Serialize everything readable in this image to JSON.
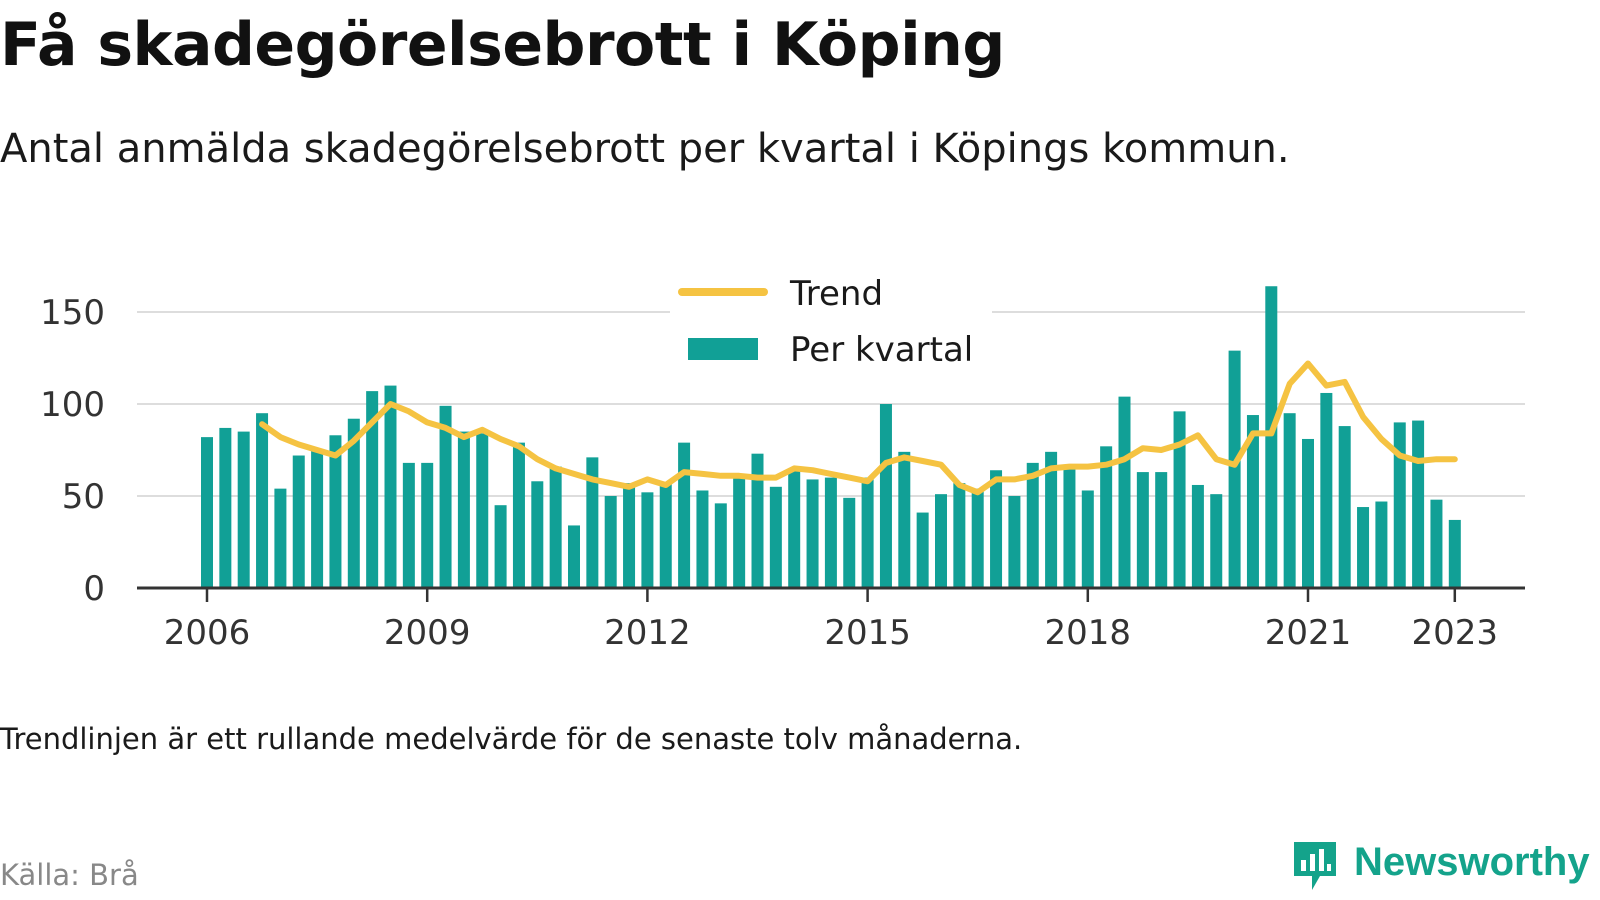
{
  "title": "Få skadegörelsebrott i Köping",
  "subtitle": "Antal anmälda skadegörelsebrott per kvartal i Köpings kommun.",
  "note": "Trendlinjen är ett rullande medelvärde för de senaste tolv månaderna.",
  "source": "Källa: Brå",
  "brand": "Newsworthy",
  "colors": {
    "bar": "#11a096",
    "trend": "#f5c342",
    "grid": "#dddddd",
    "axis": "#333333",
    "brand": "#14a38b"
  },
  "chart_data": {
    "type": "bar",
    "y_ticks": [
      0,
      50,
      100,
      150
    ],
    "ylim": [
      0,
      165
    ],
    "x_ticks": [
      {
        "label": "2006",
        "year": 2006
      },
      {
        "label": "2009",
        "year": 2009
      },
      {
        "label": "2012",
        "year": 2012
      },
      {
        "label": "2015",
        "year": 2015
      },
      {
        "label": "2018",
        "year": 2018
      },
      {
        "label": "2021",
        "year": 2021
      },
      {
        "label": "2023",
        "year": 2023
      }
    ],
    "grid": true,
    "legend_position": "top-center",
    "quarters": [
      "2006 Q1",
      "2006 Q2",
      "2006 Q3",
      "2006 Q4",
      "2007 Q1",
      "2007 Q2",
      "2007 Q3",
      "2007 Q4",
      "2008 Q1",
      "2008 Q2",
      "2008 Q3",
      "2008 Q4",
      "2009 Q1",
      "2009 Q2",
      "2009 Q3",
      "2009 Q4",
      "2010 Q1",
      "2010 Q2",
      "2010 Q3",
      "2010 Q4",
      "2011 Q1",
      "2011 Q2",
      "2011 Q3",
      "2011 Q4",
      "2012 Q1",
      "2012 Q2",
      "2012 Q3",
      "2012 Q4",
      "2013 Q1",
      "2013 Q2",
      "2013 Q3",
      "2013 Q4",
      "2014 Q1",
      "2014 Q2",
      "2014 Q3",
      "2014 Q4",
      "2015 Q1",
      "2015 Q2",
      "2015 Q3",
      "2015 Q4",
      "2016 Q1",
      "2016 Q2",
      "2016 Q3",
      "2016 Q4",
      "2017 Q1",
      "2017 Q2",
      "2017 Q3",
      "2017 Q4",
      "2018 Q1",
      "2018 Q2",
      "2018 Q3",
      "2018 Q4",
      "2019 Q1",
      "2019 Q2",
      "2019 Q3",
      "2019 Q4",
      "2020 Q1",
      "2020 Q2",
      "2020 Q3",
      "2020 Q4",
      "2021 Q1",
      "2021 Q2",
      "2021 Q3",
      "2021 Q4",
      "2022 Q1",
      "2022 Q2",
      "2022 Q3",
      "2022 Q4",
      "2023 Q1"
    ],
    "series": [
      {
        "name": "Per kvartal",
        "type": "bar",
        "values": [
          82,
          87,
          85,
          95,
          54,
          72,
          75,
          83,
          92,
          107,
          110,
          68,
          68,
          99,
          85,
          84,
          45,
          79,
          58,
          66,
          34,
          71,
          50,
          57,
          52,
          57,
          79,
          53,
          46,
          60,
          73,
          55,
          65,
          59,
          60,
          49,
          60,
          100,
          74,
          41,
          51,
          57,
          54,
          64,
          50,
          68,
          74,
          66,
          53,
          77,
          104,
          63,
          63,
          96,
          56,
          51,
          129,
          94,
          164,
          95,
          81,
          106,
          88,
          44,
          47,
          90,
          91,
          48,
          37
        ]
      },
      {
        "name": "Trend",
        "type": "line",
        "values": [
          null,
          null,
          null,
          89,
          82,
          78,
          75,
          72,
          80,
          90,
          100,
          96,
          90,
          87,
          82,
          86,
          81,
          77,
          70,
          65,
          62,
          59,
          57,
          55,
          59,
          56,
          63,
          62,
          61,
          61,
          60,
          60,
          65,
          64,
          62,
          60,
          58,
          68,
          71,
          69,
          67,
          56,
          52,
          59,
          59,
          61,
          65,
          66,
          66,
          67,
          70,
          76,
          75,
          78,
          83,
          70,
          67,
          84,
          84,
          111,
          122,
          110,
          112,
          93,
          81,
          72,
          69,
          70,
          70
        ]
      }
    ]
  }
}
